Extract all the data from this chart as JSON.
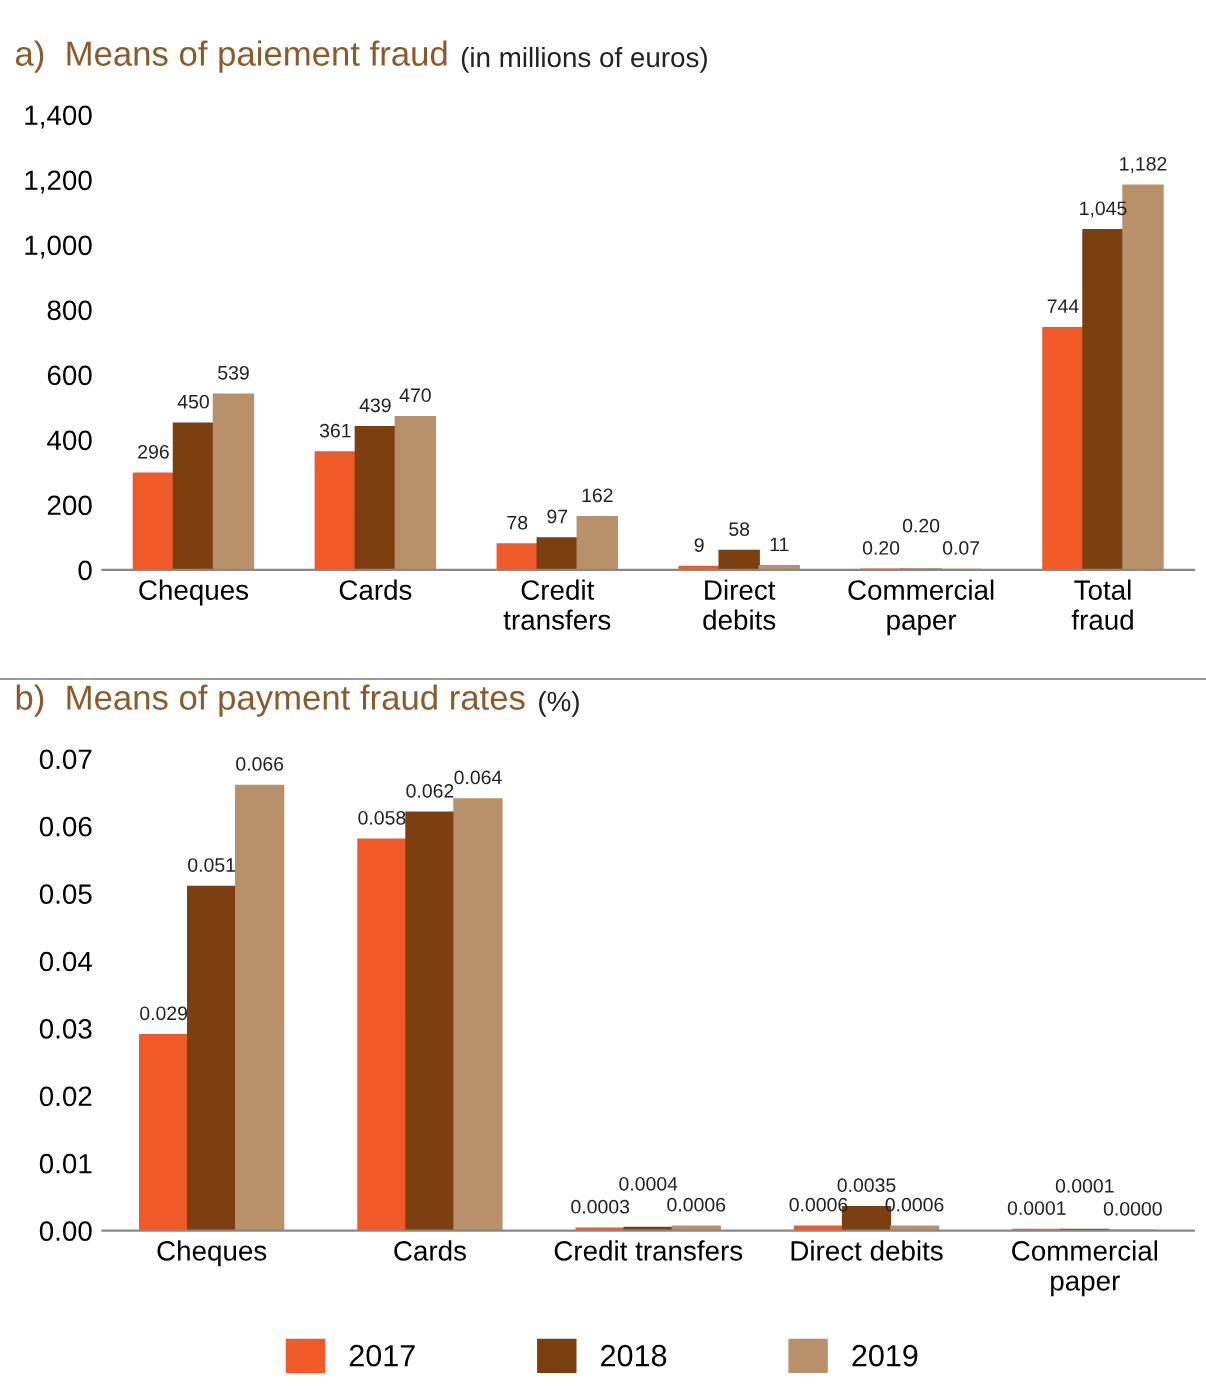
{
  "chart_data": [
    {
      "type": "bar",
      "title": "a)  Means of paiement fraud",
      "subtitle": "(in millions of euros)",
      "categories": [
        "Cheques",
        "Cards",
        "Credit\ntransfers",
        "Direct\ndebits",
        "Commercial\npaper",
        "Total\nfraud"
      ],
      "series": [
        {
          "name": "2017",
          "color": "#f05a28",
          "values": [
            296,
            361,
            78,
            9,
            0.2,
            744
          ],
          "value_labels": [
            "296",
            "361",
            "78",
            "9",
            "0.20",
            "744"
          ]
        },
        {
          "name": "2018",
          "color": "#7b3f10",
          "values": [
            450,
            439,
            97,
            58,
            0.2,
            1045
          ],
          "value_labels": [
            "450",
            "439",
            "97",
            "58",
            "0.20",
            "1,045"
          ]
        },
        {
          "name": "2019",
          "color": "#b8906a",
          "values": [
            539,
            470,
            162,
            11,
            0.07,
            1182
          ],
          "value_labels": [
            "539",
            "470",
            "162",
            "11",
            "0.07",
            "1,182"
          ]
        }
      ],
      "ylim": [
        0,
        1400
      ],
      "yticks": [
        0,
        {
          "value": 200,
          "label": "200"
        },
        {
          "value": 400,
          "label": "400"
        },
        {
          "value": 600,
          "label": "600"
        },
        {
          "value": 800,
          "label": "800"
        },
        {
          "value": 1000,
          "label": "1,000"
        },
        {
          "value": 1200,
          "label": "1,200"
        },
        {
          "value": 1400,
          "label": "1,400"
        }
      ],
      "grid": false,
      "legend": "bottom"
    },
    {
      "type": "bar",
      "title": "b)  Means of payment fraud rates",
      "subtitle": "(%)",
      "categories": [
        "Cheques",
        "Cards",
        "Credit transfers",
        "Direct debits",
        "Commercial\npaper"
      ],
      "series": [
        {
          "name": "2017",
          "color": "#f05a28",
          "values": [
            0.029,
            0.058,
            0.0003,
            0.0006,
            0.0001
          ],
          "value_labels": [
            "0.029",
            "0.058",
            "0.0003",
            "0.0006",
            "0.0001"
          ]
        },
        {
          "name": "2018",
          "color": "#7b3f10",
          "values": [
            0.051,
            0.062,
            0.0004,
            0.0035,
            0.0001
          ],
          "value_labels": [
            "0.051",
            "0.062",
            "0.0004",
            "0.0035",
            "0.0001"
          ]
        },
        {
          "name": "2019",
          "color": "#b8906a",
          "values": [
            0.066,
            0.064,
            0.0006,
            0.0006,
            0.0
          ],
          "value_labels": [
            "0.066",
            "0.064",
            "0.0006",
            "0.0006",
            "0.0000"
          ]
        }
      ],
      "ylim": [
        0,
        0.07
      ],
      "yticks": [
        {
          "value": 0,
          "label": "0.00"
        },
        {
          "value": 0.01,
          "label": "0.01"
        },
        {
          "value": 0.02,
          "label": "0.02"
        },
        {
          "value": 0.03,
          "label": "0.03"
        },
        {
          "value": 0.04,
          "label": "0.04"
        },
        {
          "value": 0.05,
          "label": "0.05"
        },
        {
          "value": 0.06,
          "label": "0.06"
        },
        {
          "value": 0.07,
          "label": "0.07"
        }
      ],
      "grid": false,
      "legend": "bottom"
    }
  ]
}
